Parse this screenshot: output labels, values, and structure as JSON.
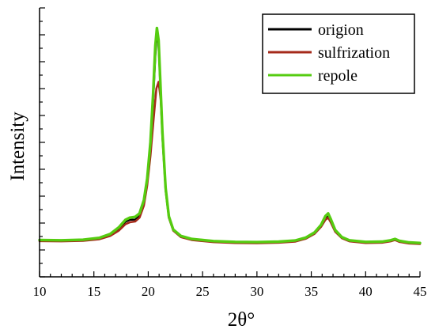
{
  "chart_data": {
    "type": "line",
    "title": "",
    "xlabel": "2θ°",
    "ylabel": "Intensity",
    "xlim": [
      10,
      45
    ],
    "ylim": [
      0,
      100
    ],
    "x_ticks": [
      "10",
      "15",
      "20",
      "25",
      "30",
      "35",
      "40",
      "45"
    ],
    "y_tick_labels": false,
    "grid": false,
    "legend_position": "top-right",
    "series": [
      {
        "name": "origion",
        "color": "#000000",
        "points": [
          [
            10,
            13.5
          ],
          [
            12,
            13.4
          ],
          [
            14,
            13.6
          ],
          [
            15.5,
            14.2
          ],
          [
            16.5,
            15.6
          ],
          [
            17.3,
            17.8
          ],
          [
            17.9,
            20.5
          ],
          [
            18.3,
            21.2
          ],
          [
            18.8,
            21.3
          ],
          [
            19.2,
            22.8
          ],
          [
            19.6,
            27.5
          ],
          [
            19.9,
            35
          ],
          [
            20.2,
            48
          ],
          [
            20.45,
            65
          ],
          [
            20.65,
            82
          ],
          [
            20.8,
            90.5
          ],
          [
            20.95,
            86.5
          ],
          [
            21.1,
            72
          ],
          [
            21.3,
            52
          ],
          [
            21.6,
            32
          ],
          [
            21.9,
            22
          ],
          [
            22.3,
            17.4
          ],
          [
            23,
            15
          ],
          [
            24,
            13.9
          ],
          [
            26,
            13.1
          ],
          [
            28,
            12.8
          ],
          [
            30,
            12.7
          ],
          [
            32,
            12.9
          ],
          [
            33.5,
            13.3
          ],
          [
            34.5,
            14.4
          ],
          [
            35.3,
            16.2
          ],
          [
            35.9,
            18.8
          ],
          [
            36.3,
            21.8
          ],
          [
            36.55,
            22.6
          ],
          [
            36.8,
            20.6
          ],
          [
            37.2,
            17
          ],
          [
            37.8,
            14.6
          ],
          [
            38.5,
            13.4
          ],
          [
            40,
            12.8
          ],
          [
            41.5,
            12.9
          ],
          [
            42.3,
            13.4
          ],
          [
            42.7,
            13.9
          ],
          [
            43.1,
            13.2
          ],
          [
            44,
            12.6
          ],
          [
            45,
            12.4
          ]
        ]
      },
      {
        "name": "sulfrization",
        "color": "#a52a1a",
        "points": [
          [
            10,
            13.3
          ],
          [
            12,
            13.2
          ],
          [
            14,
            13.4
          ],
          [
            15.5,
            14
          ],
          [
            16.5,
            15.2
          ],
          [
            17.3,
            17.2
          ],
          [
            17.9,
            19.6
          ],
          [
            18.3,
            20.3
          ],
          [
            18.8,
            20.6
          ],
          [
            19.2,
            22
          ],
          [
            19.6,
            26.5
          ],
          [
            19.9,
            34
          ],
          [
            20.2,
            45
          ],
          [
            20.5,
            59
          ],
          [
            20.75,
            70
          ],
          [
            20.95,
            72.5
          ],
          [
            21.15,
            66
          ],
          [
            21.35,
            50
          ],
          [
            21.6,
            33
          ],
          [
            21.9,
            22
          ],
          [
            22.3,
            17.2
          ],
          [
            23,
            14.8
          ],
          [
            24,
            13.7
          ],
          [
            26,
            12.9
          ],
          [
            28,
            12.6
          ],
          [
            30,
            12.5
          ],
          [
            32,
            12.7
          ],
          [
            33.5,
            13.1
          ],
          [
            34.5,
            14.2
          ],
          [
            35.3,
            16
          ],
          [
            35.9,
            18.6
          ],
          [
            36.3,
            21.2
          ],
          [
            36.55,
            22
          ],
          [
            36.8,
            20.2
          ],
          [
            37.2,
            16.8
          ],
          [
            37.8,
            14.4
          ],
          [
            38.5,
            13.2
          ],
          [
            40,
            12.6
          ],
          [
            41.5,
            12.7
          ],
          [
            42.3,
            13.2
          ],
          [
            42.7,
            13.7
          ],
          [
            43.1,
            13
          ],
          [
            44,
            12.4
          ],
          [
            45,
            12.2
          ]
        ]
      },
      {
        "name": "repole",
        "color": "#55cc11",
        "points": [
          [
            10,
            13.7
          ],
          [
            12,
            13.6
          ],
          [
            14,
            13.8
          ],
          [
            15.5,
            14.5
          ],
          [
            16.5,
            15.9
          ],
          [
            17.3,
            18.4
          ],
          [
            17.9,
            21.2
          ],
          [
            18.3,
            22
          ],
          [
            18.8,
            22.3
          ],
          [
            19.2,
            23.6
          ],
          [
            19.6,
            28.5
          ],
          [
            19.9,
            36.5
          ],
          [
            20.2,
            50
          ],
          [
            20.45,
            68
          ],
          [
            20.65,
            86
          ],
          [
            20.8,
            92.5
          ],
          [
            20.95,
            88
          ],
          [
            21.1,
            74
          ],
          [
            21.3,
            54
          ],
          [
            21.6,
            33
          ],
          [
            21.9,
            22.5
          ],
          [
            22.3,
            17.6
          ],
          [
            23,
            15.2
          ],
          [
            24,
            14.1
          ],
          [
            26,
            13.3
          ],
          [
            28,
            13
          ],
          [
            30,
            12.9
          ],
          [
            32,
            13.1
          ],
          [
            33.5,
            13.5
          ],
          [
            34.5,
            14.6
          ],
          [
            35.3,
            16.5
          ],
          [
            35.9,
            19.3
          ],
          [
            36.3,
            22.6
          ],
          [
            36.55,
            23.6
          ],
          [
            36.8,
            21.4
          ],
          [
            37.2,
            17.4
          ],
          [
            37.8,
            14.8
          ],
          [
            38.5,
            13.6
          ],
          [
            40,
            13
          ],
          [
            41.5,
            13.1
          ],
          [
            42.3,
            13.6
          ],
          [
            42.7,
            14.1
          ],
          [
            43.1,
            13.4
          ],
          [
            44,
            12.8
          ],
          [
            45,
            12.6
          ]
        ]
      }
    ]
  }
}
